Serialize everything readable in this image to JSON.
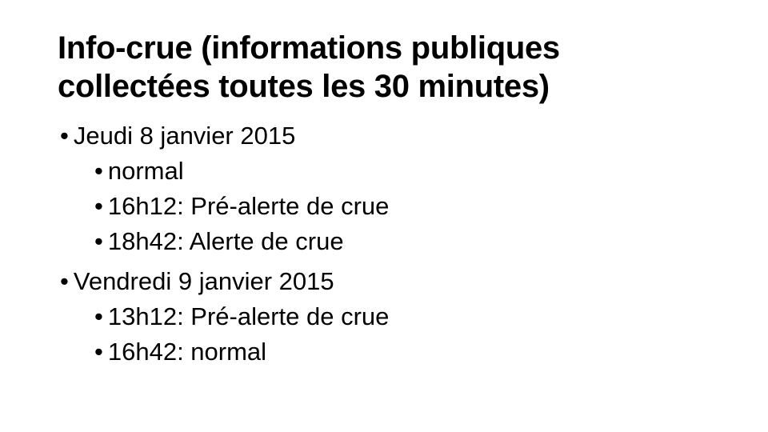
{
  "slide": {
    "title": "Info-crue (informations publiques collectées toutes les 30 minutes)",
    "bullet_glyph": "•",
    "colors": {
      "background": "#ffffff",
      "text": "#000000"
    },
    "groups": [
      {
        "label": "Jeudi 8 janvier 2015",
        "children": [
          "normal",
          "16h12: Pré-alerte de crue",
          "18h42: Alerte de crue"
        ]
      },
      {
        "label": "Vendredi 9 janvier 2015",
        "children": [
          "13h12: Pré-alerte de crue",
          "16h42: normal"
        ]
      }
    ]
  }
}
